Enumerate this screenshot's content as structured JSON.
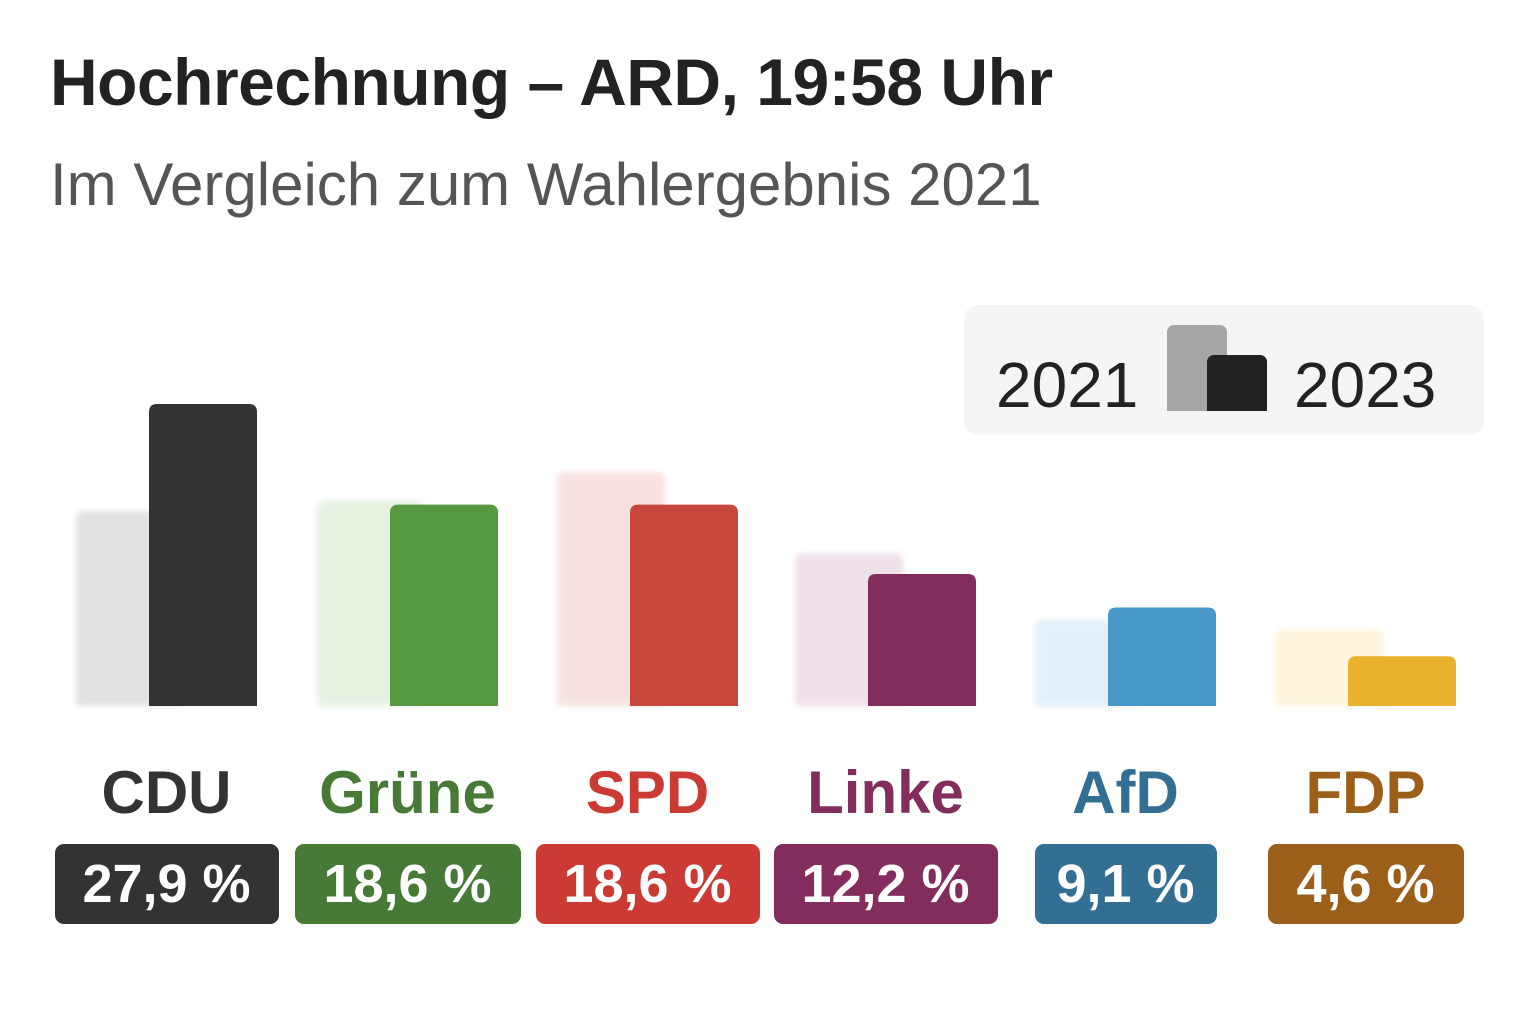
{
  "header": {
    "title": "Hochrechnung – ARD, 19:58 Uhr",
    "subtitle": "Im Vergleich zum Wahlergebnis 2021"
  },
  "legend": {
    "old_label": "2021",
    "new_label": "2023"
  },
  "chart_data": {
    "type": "bar",
    "title": "Hochrechnung – ARD, 19:58 Uhr",
    "subtitle": "Im Vergleich zum Wahlergebnis 2021",
    "categories": [
      "CDU",
      "Grüne",
      "SPD",
      "Linke",
      "AfD",
      "FDP"
    ],
    "series": [
      {
        "name": "2021",
        "values": [
          18.0,
          18.9,
          21.6,
          14.1,
          8.0,
          7.1
        ]
      },
      {
        "name": "2023",
        "values": [
          27.9,
          18.6,
          18.6,
          12.2,
          9.1,
          4.6
        ]
      }
    ],
    "value_labels": [
      "27,9 %",
      "18,6 %",
      "18,6 %",
      "12,2 %",
      "9,1 %",
      "4,6 %"
    ],
    "colors": {
      "CDU": {
        "main": "#333333",
        "faded": "#e2e2e2",
        "label": "#333333",
        "badge": "#333333"
      },
      "Grüne": {
        "main": "#579843",
        "faded": "#e6f1e2",
        "label": "#467a36",
        "badge": "#467a36"
      },
      "SPD": {
        "main": "#c8473c",
        "faded": "#f7e2e1",
        "label": "#cc3b33",
        "badge": "#cc3b33"
      },
      "Linke": {
        "main": "#822d5d",
        "faded": "#efe1ea",
        "label": "#822d5d",
        "badge": "#822d5d"
      },
      "AfD": {
        "main": "#4899c9",
        "faded": "#e4f0f8",
        "label": "#336f93",
        "badge": "#336f93"
      },
      "FDP": {
        "main": "#ebb22d",
        "faded": "#fdf6dd",
        "label": "#9b5f19",
        "badge": "#9b5f19"
      }
    },
    "ylim": [
      0,
      30
    ],
    "grid": false,
    "legend_position": "top-right"
  }
}
